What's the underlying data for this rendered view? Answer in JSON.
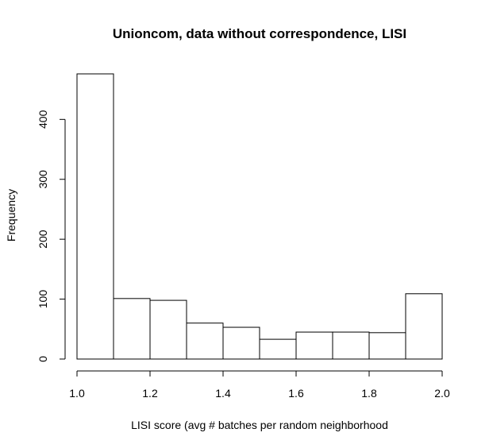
{
  "chart_data": {
    "type": "histogram",
    "title": "Unioncom, data without correspondence, LISI",
    "xlabel": "LISI score (avg # batches per random neighborhood",
    "ylabel": "Frequency",
    "bin_edges": [
      1.0,
      1.1,
      1.2,
      1.3,
      1.4,
      1.5,
      1.6,
      1.7,
      1.8,
      1.9,
      2.0
    ],
    "values": [
      476,
      101,
      98,
      60,
      53,
      33,
      45,
      45,
      44,
      109
    ],
    "xlim": [
      1.0,
      2.0
    ],
    "ylim": [
      0,
      476
    ],
    "x_ticks": [
      1.0,
      1.2,
      1.4,
      1.6,
      1.8,
      2.0
    ],
    "x_tick_labels": [
      "1.0",
      "1.2",
      "1.4",
      "1.6",
      "1.8",
      "2.0"
    ],
    "y_ticks": [
      0,
      100,
      200,
      300,
      400
    ],
    "y_tick_labels": [
      "0",
      "100",
      "200",
      "300",
      "400"
    ],
    "colors": {
      "bar_fill": "#ffffff",
      "bar_stroke": "#000000",
      "axis": "#000000"
    }
  }
}
